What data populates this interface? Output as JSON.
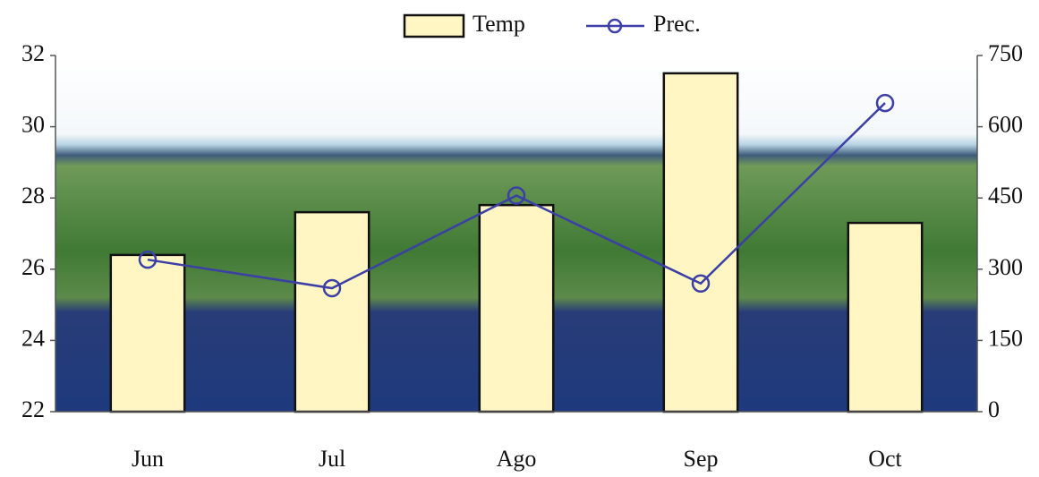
{
  "chart_data": {
    "type": "bar",
    "categories": [
      "Jun",
      "Jul",
      "Ago",
      "Sep",
      "Oct"
    ],
    "series": [
      {
        "name": "Temp",
        "type": "bar",
        "color": "#fff6c4",
        "values": [
          26.4,
          27.6,
          27.8,
          31.5,
          27.3
        ]
      },
      {
        "name": "Prec.",
        "type": "line",
        "axis": "y2",
        "color": "#3b3fa6",
        "values": [
          320,
          260,
          455,
          270,
          650
        ]
      }
    ],
    "ylim": [
      22,
      32
    ],
    "yticks": [
      22,
      24,
      26,
      28,
      30,
      32
    ],
    "y2lim": [
      0,
      750
    ],
    "y2ticks": [
      0,
      150,
      300,
      450,
      600,
      750
    ],
    "legend": "top"
  }
}
